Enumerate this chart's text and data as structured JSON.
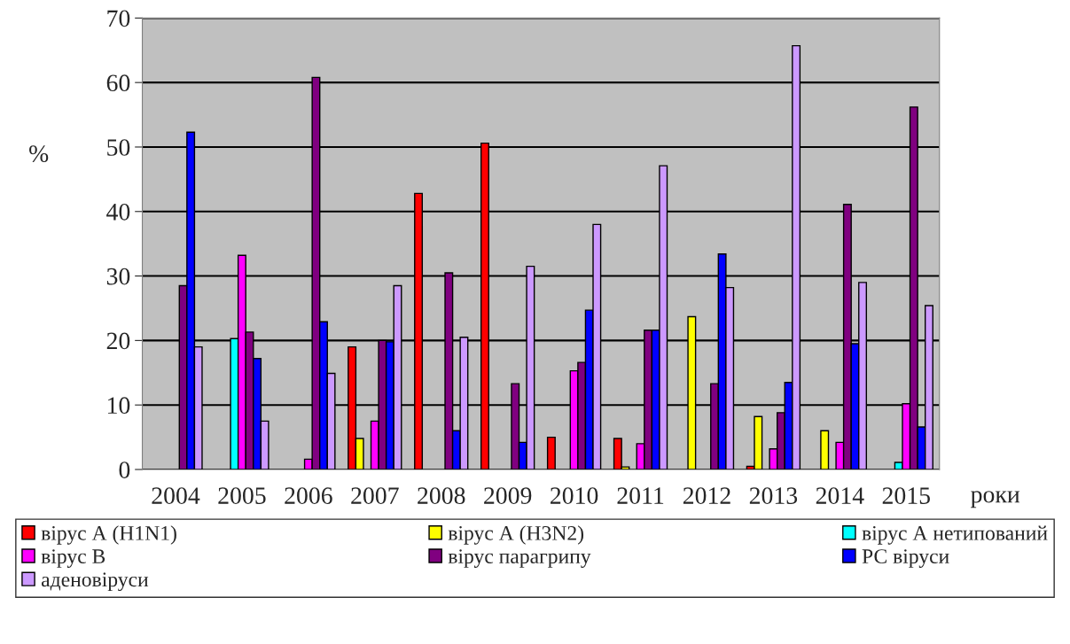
{
  "chart_data": {
    "type": "bar",
    "ylabel": "%",
    "xlabel": "роки",
    "categories": [
      "2004",
      "2005",
      "2006",
      "2007",
      "2008",
      "2009",
      "2010",
      "2011",
      "2012",
      "2013",
      "2014",
      "2015"
    ],
    "series": [
      {
        "name": "вірус А (H1N1)",
        "color": "#ff0000",
        "values": [
          0,
          0,
          0,
          19,
          42.8,
          50.6,
          5,
          4.8,
          0,
          0.5,
          0,
          0
        ]
      },
      {
        "name": "вірус А (H3N2)",
        "color": "#ffff00",
        "values": [
          0,
          0,
          0,
          4.8,
          0,
          0,
          0,
          0.4,
          23.7,
          8.2,
          6,
          0
        ]
      },
      {
        "name": "вірус А нетипований",
        "color": "#00ffff",
        "values": [
          0,
          20.3,
          0,
          0,
          0,
          0,
          0,
          0,
          0,
          0,
          0,
          1.1
        ]
      },
      {
        "name": "вірус В",
        "color": "#ff00ff",
        "values": [
          0,
          33.2,
          1.6,
          7.5,
          0,
          0,
          15.3,
          4,
          0,
          3.2,
          4.2,
          10.2
        ]
      },
      {
        "name": "вірус парагрипу",
        "color": "#800080",
        "values": [
          28.5,
          21.3,
          60.8,
          20,
          30.5,
          13.3,
          16.6,
          21.6,
          13.3,
          8.8,
          41.1,
          56.2
        ]
      },
      {
        "name": "РС віруси",
        "color": "#0000ff",
        "values": [
          52.3,
          17.2,
          22.9,
          19.8,
          6,
          4.2,
          24.7,
          21.6,
          33.4,
          13.5,
          19.5,
          6.6
        ]
      },
      {
        "name": "аденовіруси",
        "color": "#cc99ff",
        "values": [
          19,
          7.5,
          14.9,
          28.5,
          20.5,
          31.5,
          38,
          47.1,
          28.2,
          65.7,
          29,
          25.4
        ]
      }
    ],
    "ylim": [
      0,
      70
    ],
    "yticks": [
      0,
      10,
      20,
      30,
      40,
      50,
      60,
      70
    ],
    "grid": "y",
    "legend": "bottom"
  }
}
